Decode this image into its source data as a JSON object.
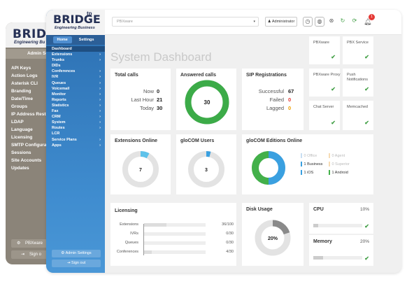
{
  "back_window": {
    "logo": "BRIDGE",
    "tagline": "Engineering Bu",
    "panel_title": "Admin Setti",
    "menu": [
      "API Keys",
      "Action Logs",
      "Asterisk CLI",
      "Branding",
      "Date/Time",
      "Groups",
      "IP Address Restric",
      "LDAP",
      "Language",
      "Licensing",
      "SMTP Configurati",
      "Sessions",
      "Site Accounts",
      "Updates"
    ],
    "btn_pbxware": "PBXware",
    "btn_signout": "Sign o"
  },
  "sidebar": {
    "logo": "BRIDGE",
    "logo_sup": "tp",
    "tagline": "Engineering Business",
    "tab_home": "Home",
    "tab_settings": "Settings",
    "nav": [
      {
        "label": "Dashboard",
        "arrow": ""
      },
      {
        "label": "Extensions",
        "arrow": "›"
      },
      {
        "label": "Trunks",
        "arrow": "›"
      },
      {
        "label": "DIDs",
        "arrow": ""
      },
      {
        "label": "Conferences",
        "arrow": "›"
      },
      {
        "label": "IVR",
        "arrow": "›"
      },
      {
        "label": "Queues",
        "arrow": "›"
      },
      {
        "label": "Voicemail",
        "arrow": "›"
      },
      {
        "label": "Monitor",
        "arrow": "›"
      },
      {
        "label": "Reports",
        "arrow": "›"
      },
      {
        "label": "Statistics",
        "arrow": "›"
      },
      {
        "label": "Fax",
        "arrow": "›"
      },
      {
        "label": "CRM",
        "arrow": "›"
      },
      {
        "label": "System",
        "arrow": "›"
      },
      {
        "label": "Routes",
        "arrow": "›"
      },
      {
        "label": "LCR",
        "arrow": ""
      },
      {
        "label": "Service Plans",
        "arrow": "›"
      },
      {
        "label": "Apps",
        "arrow": "›"
      }
    ],
    "btn_admin": "Admin Settings",
    "btn_signout": "Sign out"
  },
  "topbar": {
    "select_value": "PBXware",
    "admin_label": "Administrator",
    "notifications": "1"
  },
  "page_title": "System Dashboard",
  "total_calls": {
    "title": "Total calls",
    "now_label": "Now",
    "now": "0",
    "lasthour_label": "Last Hour",
    "lasthour": "21",
    "today_label": "Today",
    "today": "30"
  },
  "answered_calls": {
    "title": "Answered calls",
    "value": "30",
    "fraction": 1.0
  },
  "sip": {
    "title": "SIP Registrations",
    "successful_label": "Successful",
    "successful": "67",
    "failed_label": "Failed",
    "failed": "0",
    "lagged_label": "Lagged",
    "lagged": "0"
  },
  "services": [
    {
      "label": "PBXware"
    },
    {
      "label": "PBX Service"
    },
    {
      "label": "PBXware Proxy"
    },
    {
      "label": "Push Notifications"
    },
    {
      "label": "Chat Server"
    },
    {
      "label": "Memcached"
    }
  ],
  "extensions_online": {
    "title": "Extensions Online",
    "value": "7",
    "fraction": 0.08
  },
  "glocom_users": {
    "title": "gloCOM Users",
    "value": "3",
    "fraction": 0.04
  },
  "glocom_editions": {
    "title": "gloCOM Editions Online",
    "items": [
      {
        "count": "0",
        "label": "Office",
        "color": "#c8dff3",
        "dim": true
      },
      {
        "count": "0",
        "label": "Agent",
        "color": "#f6dcb4",
        "dim": true
      },
      {
        "count": "1",
        "label": "Business",
        "color": "#3aa0e0",
        "dim": false
      },
      {
        "count": "0",
        "label": "Superior",
        "color": "#f6dcb4",
        "dim": true
      },
      {
        "count": "1",
        "label": "iOS",
        "color": "#3aa0e0",
        "dim": false
      },
      {
        "count": "1",
        "label": "Android",
        "color": "#43b04a",
        "dim": false
      }
    ],
    "pie": [
      {
        "value": 0.5,
        "color": "#3aa0e0"
      },
      {
        "value": 0.5,
        "color": "#43b04a"
      }
    ]
  },
  "licensing": {
    "title": "Licensing",
    "rows": [
      {
        "label": "Extensions",
        "value": "36/100",
        "fraction": 0.36
      },
      {
        "label": "IVRs",
        "value": "0/30",
        "fraction": 0
      },
      {
        "label": "Queues",
        "value": "0/30",
        "fraction": 0
      },
      {
        "label": "Conferences",
        "value": "4/30",
        "fraction": 0.13
      }
    ]
  },
  "disk": {
    "title": "Disk Usage",
    "value": "20%",
    "fraction": 0.2
  },
  "cpu": {
    "title": "CPU",
    "value": "10%",
    "fraction": 0.1
  },
  "memory": {
    "title": "Memory",
    "value": "20%",
    "fraction": 0.2
  },
  "colors": {
    "accent": "#3f8ccf",
    "ok": "#43a047",
    "red": "#e53935",
    "orange": "#f0a000"
  }
}
